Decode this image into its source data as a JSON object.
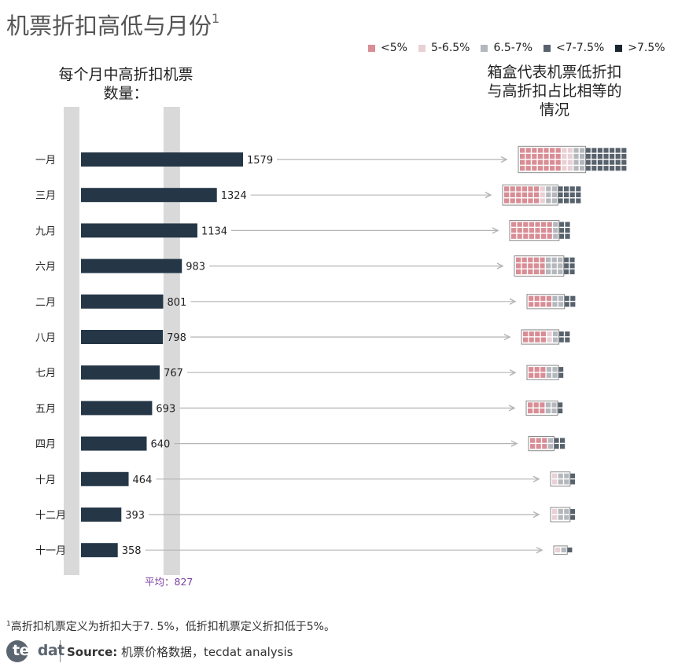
{
  "title": "机票折扣高低与月份",
  "title_sup": "1",
  "legend": [
    {
      "label": "<5%",
      "color": "#d98d95"
    },
    {
      "label": "5-6.5%",
      "color": "#e9d0d4"
    },
    {
      "label": "6.5-7%",
      "color": "#b4b8bd"
    },
    {
      "label": "<7-7.5%",
      "color": "#58626d"
    },
    {
      "label": ">7.5%",
      "color": "#1a2530"
    }
  ],
  "left_heading_line1": "每个月中高折扣机票",
  "left_heading_line2": "数量：",
  "right_heading_line1": "箱盒代表机票低折扣",
  "right_heading_line2": "与高折扣占比相等的",
  "right_heading_line3": "情况",
  "average_label": "平均：827",
  "footnote_sup": "1",
  "footnote": "高折扣机票定义为折扣大于7. 5%，低折扣机票定义折扣低于5%。",
  "logo_text_a": "tec",
  "logo_text_b": "dat",
  "source_label": "Source:",
  "source_text": "机票价格数据，tecdat analysis",
  "colors": {
    "bar": "#253747",
    "band": "#d9d9d9",
    "arrow": "#b5b5b5",
    "average": "#7a3fa0"
  },
  "chart_data": {
    "type": "bar",
    "orientation": "horizontal",
    "title": "每个月中高折扣机票数量",
    "categories": [
      "一月",
      "三月",
      "九月",
      "六月",
      "二月",
      "八月",
      "七月",
      "五月",
      "四月",
      "十月",
      "十二月",
      "十一月"
    ],
    "values": [
      1579,
      1324,
      1134,
      983,
      801,
      798,
      767,
      693,
      640,
      464,
      393,
      358
    ],
    "average": 827,
    "waffle_share_estimate": [
      {
        "month": "一月",
        "lt5": 0.37,
        "b5_65": 0.13,
        "b65_7": 0.1,
        "b7_75": 0.4
      },
      {
        "month": "三月",
        "lt5": 0.48,
        "b5_65": 0.05,
        "b65_7": 0.2,
        "b7_75": 0.27
      },
      {
        "month": "九月",
        "lt5": 0.68,
        "b5_65": 0.0,
        "b65_7": 0.1,
        "b7_75": 0.22
      },
      {
        "month": "六月",
        "lt5": 0.48,
        "b5_65": 0.0,
        "b65_7": 0.3,
        "b7_75": 0.22
      },
      {
        "month": "二月",
        "lt5": 0.44,
        "b5_65": 0.0,
        "b65_7": 0.26,
        "b7_75": 0.3
      },
      {
        "month": "八月",
        "lt5": 0.46,
        "b5_65": 0.18,
        "b65_7": 0.16,
        "b7_75": 0.2
      },
      {
        "month": "七月",
        "lt5": 0.5,
        "b5_65": 0.05,
        "b65_7": 0.2,
        "b7_75": 0.25
      },
      {
        "month": "五月",
        "lt5": 0.5,
        "b5_65": 0.05,
        "b65_7": 0.2,
        "b7_75": 0.25
      },
      {
        "month": "四月",
        "lt5": 0.5,
        "b5_65": 0.04,
        "b65_7": 0.18,
        "b7_75": 0.28
      },
      {
        "month": "十月",
        "lt5": 0.12,
        "b5_65": 0.2,
        "b65_7": 0.4,
        "b7_75": 0.28
      },
      {
        "month": "十二月",
        "lt5": 0.1,
        "b5_65": 0.2,
        "b65_7": 0.45,
        "b7_75": 0.25
      },
      {
        "month": "十一月",
        "lt5": 0.0,
        "b5_65": 0.4,
        "b65_7": 0.3,
        "b7_75": 0.3
      }
    ]
  }
}
